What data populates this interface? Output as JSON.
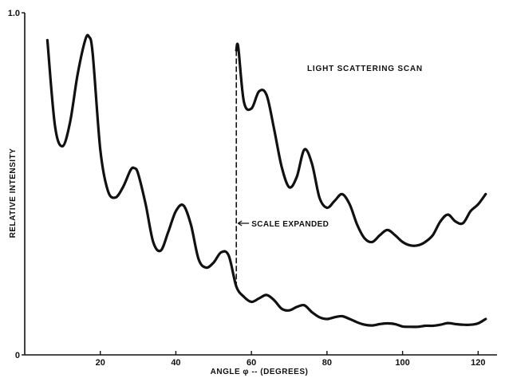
{
  "chart_data": {
    "type": "line",
    "title": "LIGHT SCATTERING SCAN",
    "xlabel": "ANGLE φ -- (DEGREES)",
    "ylabel": "RELATIVE INTENSITY",
    "xlim": [
      0,
      125
    ],
    "ylim": [
      0,
      1.0
    ],
    "x_ticks": [
      20,
      40,
      60,
      80,
      100,
      120
    ],
    "x_tick_labels": [
      "20",
      "40",
      "60",
      "80",
      "100",
      "120"
    ],
    "y_ticks": [
      0,
      1.0
    ],
    "y_tick_labels": [
      "0",
      "1.0"
    ],
    "grid": false,
    "legend": "none",
    "annotations": [
      {
        "text": "SCALE EXPANDED",
        "x": 56
      }
    ],
    "series": [
      {
        "x": [
          6,
          8,
          10,
          12,
          14,
          16,
          17,
          18,
          20,
          22,
          24,
          26,
          28,
          29,
          30,
          32,
          34,
          36,
          38,
          40,
          42,
          44,
          46,
          48,
          50,
          52,
          54,
          56,
          58,
          60,
          62,
          64,
          66,
          68,
          70,
          72,
          74,
          76,
          78,
          80,
          82,
          84,
          86,
          88,
          90,
          92,
          94,
          96,
          98,
          100,
          102,
          104,
          106,
          108,
          110,
          112,
          114,
          116,
          118,
          120,
          122
        ],
        "values": [
          0.92,
          0.67,
          0.61,
          0.68,
          0.82,
          0.92,
          0.93,
          0.88,
          0.6,
          0.48,
          0.46,
          0.49,
          0.54,
          0.546,
          0.53,
          0.44,
          0.33,
          0.305,
          0.36,
          0.42,
          0.437,
          0.38,
          0.28,
          0.255,
          0.27,
          0.3,
          0.29,
          0.2,
          0.17,
          0.155,
          0.165,
          0.175,
          0.16,
          0.135,
          0.13,
          0.14,
          0.145,
          0.125,
          0.11,
          0.105,
          0.11,
          0.113,
          0.105,
          0.095,
          0.088,
          0.086,
          0.09,
          0.092,
          0.09,
          0.083,
          0.082,
          0.082,
          0.085,
          0.085,
          0.088,
          0.093,
          0.09,
          0.088,
          0.088,
          0.092,
          0.105
        ]
      },
      {
        "x": [
          56,
          56.5,
          58,
          60,
          62,
          64,
          66,
          68,
          70,
          72,
          74,
          76,
          78,
          80,
          82,
          84,
          86,
          88,
          90,
          92,
          94,
          96,
          98,
          100,
          102,
          104,
          106,
          108,
          110,
          112,
          114,
          116,
          118,
          120,
          122
        ],
        "values": [
          0.89,
          0.9,
          0.74,
          0.72,
          0.77,
          0.76,
          0.66,
          0.55,
          0.49,
          0.52,
          0.6,
          0.56,
          0.46,
          0.43,
          0.45,
          0.47,
          0.44,
          0.38,
          0.34,
          0.33,
          0.35,
          0.365,
          0.35,
          0.33,
          0.32,
          0.32,
          0.33,
          0.35,
          0.39,
          0.41,
          0.39,
          0.385,
          0.42,
          0.44,
          0.47
        ]
      }
    ]
  }
}
